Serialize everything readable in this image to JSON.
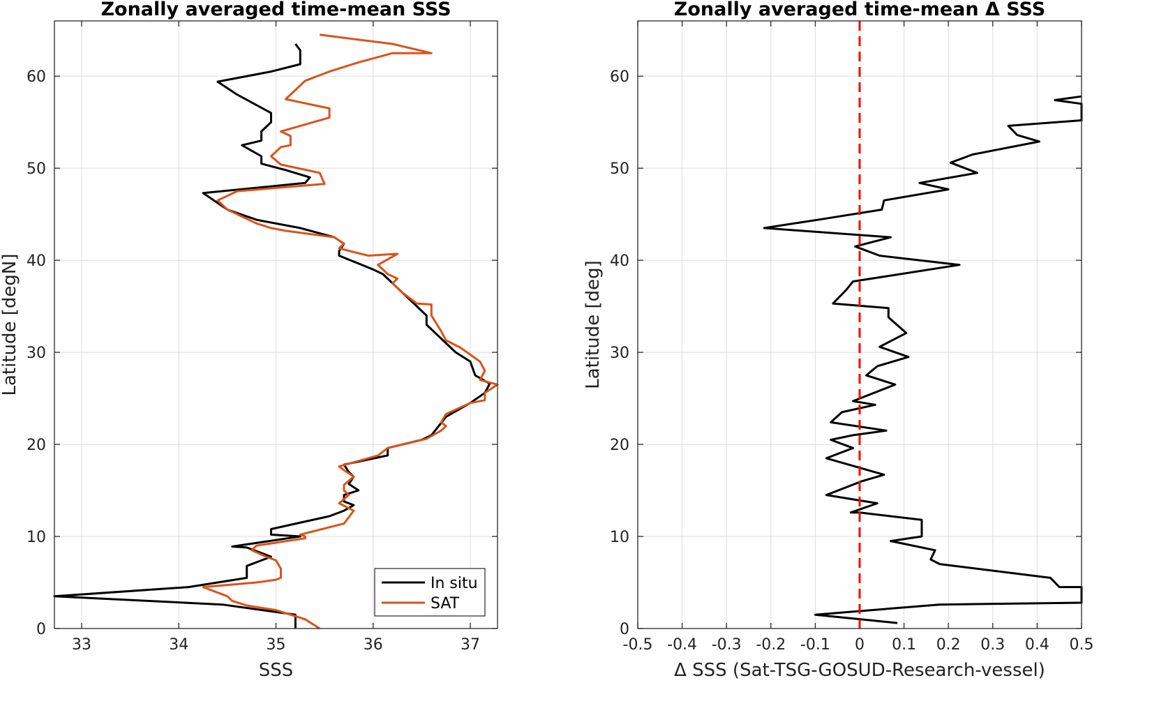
{
  "chart_data": [
    {
      "type": "line",
      "title": "Zonally averaged time-mean SSS",
      "xlabel": "SSS",
      "ylabel": "Latitude [degN]",
      "xlim": [
        32.72,
        37.28
      ],
      "ylim": [
        0,
        66
      ],
      "xticks": [
        33,
        34,
        35,
        36,
        37
      ],
      "yticks": [
        0,
        10,
        20,
        30,
        40,
        50,
        60
      ],
      "grid": true,
      "legend_position": "bottom-right",
      "series": [
        {
          "name": "In situ",
          "color": "#000000",
          "points": [
            [
              35.2,
              0
            ],
            [
              35.2,
              1.5
            ],
            [
              34.45,
              2.6
            ],
            [
              32.72,
              3.5
            ],
            [
              34.1,
              4.5
            ],
            [
              34.7,
              5.5
            ],
            [
              34.7,
              6.8
            ],
            [
              34.95,
              7.8
            ],
            [
              34.8,
              8.4
            ],
            [
              34.7,
              8.8
            ],
            [
              34.55,
              8.9
            ],
            [
              35.25,
              10
            ],
            [
              34.95,
              10.2
            ],
            [
              34.95,
              10.8
            ],
            [
              35.55,
              12.2
            ],
            [
              35.7,
              12.8
            ],
            [
              35.8,
              13.4
            ],
            [
              35.7,
              13.8
            ],
            [
              35.7,
              14.5
            ],
            [
              35.85,
              15
            ],
            [
              35.75,
              15.7
            ],
            [
              35.8,
              16.5
            ],
            [
              35.75,
              17
            ],
            [
              35.7,
              17.8
            ],
            [
              36.15,
              18.8
            ],
            [
              36.15,
              19.6
            ],
            [
              36.5,
              20.5
            ],
            [
              36.6,
              21
            ],
            [
              36.75,
              23
            ],
            [
              37.0,
              24.5
            ],
            [
              37.15,
              25.6
            ],
            [
              37.2,
              26.6
            ],
            [
              37.05,
              27.5
            ],
            [
              37.0,
              29
            ],
            [
              36.85,
              30
            ],
            [
              36.75,
              31
            ],
            [
              36.7,
              31.5
            ],
            [
              36.55,
              33
            ],
            [
              36.55,
              34
            ],
            [
              36.45,
              35
            ],
            [
              36.3,
              36.5
            ],
            [
              36.2,
              37.5
            ],
            [
              36.1,
              38.5
            ],
            [
              36.0,
              39
            ],
            [
              35.65,
              40.5
            ],
            [
              35.65,
              41
            ],
            [
              35.7,
              41.8
            ],
            [
              35.6,
              42.5
            ],
            [
              35.25,
              43.5
            ],
            [
              34.8,
              44.4
            ],
            [
              34.5,
              45.5
            ],
            [
              34.25,
              47.3
            ],
            [
              35.3,
              48.4
            ],
            [
              35.35,
              49
            ],
            [
              35.1,
              49.8
            ],
            [
              34.85,
              50.5
            ],
            [
              34.85,
              51.3
            ],
            [
              34.65,
              52.5
            ],
            [
              34.85,
              53
            ],
            [
              34.85,
              54
            ],
            [
              34.95,
              55
            ],
            [
              34.95,
              56
            ],
            [
              34.6,
              58
            ],
            [
              34.4,
              59.4
            ],
            [
              34.95,
              60.5
            ],
            [
              35.25,
              61.3
            ],
            [
              35.25,
              62.8
            ],
            [
              35.2,
              63.5
            ]
          ]
        },
        {
          "name": "SAT",
          "color": "#d95319",
          "points": [
            [
              35.45,
              0
            ],
            [
              35.3,
              1
            ],
            [
              35.0,
              2
            ],
            [
              34.7,
              2.5
            ],
            [
              34.55,
              3
            ],
            [
              34.5,
              3.5
            ],
            [
              34.25,
              4.5
            ],
            [
              34.8,
              5
            ],
            [
              35.0,
              5.3
            ],
            [
              35.05,
              5.5
            ],
            [
              35.05,
              6.5
            ],
            [
              35.0,
              7.4
            ],
            [
              34.9,
              7.8
            ],
            [
              34.75,
              8.5
            ],
            [
              34.8,
              9
            ],
            [
              35.3,
              9.8
            ],
            [
              35.3,
              10
            ],
            [
              35.25,
              10.2
            ],
            [
              35.7,
              11.4
            ],
            [
              35.8,
              12.8
            ],
            [
              35.65,
              13.6
            ],
            [
              35.75,
              14.5
            ],
            [
              35.7,
              15
            ],
            [
              35.7,
              15.6
            ],
            [
              35.8,
              16.5
            ],
            [
              35.7,
              17.2
            ],
            [
              35.65,
              17.6
            ],
            [
              36.05,
              18.8
            ],
            [
              36.15,
              19.6
            ],
            [
              36.55,
              20.6
            ],
            [
              36.7,
              21.5
            ],
            [
              36.75,
              22
            ],
            [
              36.7,
              22.4
            ],
            [
              36.75,
              23.3
            ],
            [
              37.0,
              24.5
            ],
            [
              37.15,
              24.8
            ],
            [
              37.15,
              25.6
            ],
            [
              37.28,
              26.5
            ],
            [
              37.1,
              27
            ],
            [
              37.15,
              28
            ],
            [
              37.1,
              29
            ],
            [
              36.9,
              30.5
            ],
            [
              36.75,
              31.3
            ],
            [
              36.7,
              32.3
            ],
            [
              36.6,
              34
            ],
            [
              36.6,
              35.2
            ],
            [
              36.45,
              35.3
            ],
            [
              36.3,
              36.5
            ],
            [
              36.2,
              37.5
            ],
            [
              36.25,
              38
            ],
            [
              36.15,
              38.5
            ],
            [
              36.05,
              39.5
            ],
            [
              36.25,
              40.7
            ],
            [
              35.95,
              40.5
            ],
            [
              35.65,
              41.3
            ],
            [
              35.7,
              41.8
            ],
            [
              35.6,
              42.5
            ],
            [
              35.1,
              43.2
            ],
            [
              34.95,
              43.5
            ],
            [
              34.8,
              44
            ],
            [
              34.5,
              45.5
            ],
            [
              34.4,
              46.5
            ],
            [
              34.6,
              47.5
            ],
            [
              35.5,
              48.3
            ],
            [
              35.45,
              49.5
            ],
            [
              35.05,
              50.4
            ],
            [
              34.95,
              51.3
            ],
            [
              35.05,
              52.3
            ],
            [
              35.15,
              52.5
            ],
            [
              35.15,
              53.5
            ],
            [
              35.05,
              54
            ],
            [
              35.55,
              55.5
            ],
            [
              35.55,
              56.5
            ],
            [
              35.1,
              57.5
            ],
            [
              35.2,
              58.5
            ],
            [
              35.3,
              59.5
            ],
            [
              35.55,
              60.5
            ],
            [
              35.85,
              61.5
            ],
            [
              36.2,
              62.5
            ],
            [
              36.6,
              62.5
            ],
            [
              36.2,
              63.5
            ],
            [
              35.45,
              64.5
            ]
          ]
        }
      ]
    },
    {
      "type": "line",
      "title": "Zonally averaged time-mean Δ SSS",
      "xlabel": "Δ SSS (Sat-TSG-GOSUD-Research-vessel)",
      "ylabel": "Latitude [deg]",
      "xlim": [
        -0.5,
        0.5
      ],
      "ylim": [
        0,
        66
      ],
      "xticks": [
        -0.5,
        -0.4,
        -0.3,
        -0.2,
        -0.1,
        0,
        0.1,
        0.2,
        0.3,
        0.4,
        0.5
      ],
      "xtick_labels": [
        "-0.5",
        "-0.4",
        "-0.3",
        "-0.2",
        "-0.1",
        "0",
        "0.1",
        "0.2",
        "0.3",
        "0.4",
        "0.5"
      ],
      "yticks": [
        0,
        10,
        20,
        30,
        40,
        50,
        60
      ],
      "grid": true,
      "reference_line": {
        "x": 0,
        "color": "#ff0000",
        "style": "dashed"
      },
      "series": [
        {
          "name": "",
          "color": "#000000",
          "points": [
            [
              0.085,
              0.6
            ],
            [
              -0.1,
              1.5
            ],
            [
              0.18,
              2.6
            ],
            [
              0.5,
              2.8
            ],
            [
              0.5,
              4.5
            ],
            [
              0.45,
              4.5
            ],
            [
              0.43,
              5.5
            ],
            [
              0.18,
              7
            ],
            [
              0.16,
              7.5
            ],
            [
              0.17,
              8.5
            ],
            [
              0.07,
              9.5
            ],
            [
              0.14,
              10
            ],
            [
              0.14,
              11.8
            ],
            [
              0.0,
              12.6
            ],
            [
              -0.02,
              12.6
            ],
            [
              0.04,
              13.6
            ],
            [
              -0.075,
              14.5
            ],
            [
              0.005,
              16
            ],
            [
              0.055,
              16.7
            ],
            [
              -0.075,
              18.5
            ],
            [
              -0.015,
              19.6
            ],
            [
              -0.065,
              20.5
            ],
            [
              -0.015,
              21
            ],
            [
              0.06,
              21.5
            ],
            [
              -0.065,
              22.4
            ],
            [
              -0.04,
              23.5
            ],
            [
              0.035,
              24.3
            ],
            [
              -0.015,
              24.7
            ],
            [
              0.08,
              26.5
            ],
            [
              0.015,
              27.5
            ],
            [
              0.04,
              28.5
            ],
            [
              0.11,
              29.5
            ],
            [
              0.045,
              30.6
            ],
            [
              0.105,
              32.1
            ],
            [
              0.065,
              33.8
            ],
            [
              0.065,
              34.8
            ],
            [
              -0.06,
              35.3
            ],
            [
              -0.03,
              36.8
            ],
            [
              -0.015,
              37.7
            ],
            [
              0.225,
              39.5
            ],
            [
              0.045,
              40.5
            ],
            [
              -0.01,
              41.5
            ],
            [
              0.07,
              42.5
            ],
            [
              -0.215,
              43.5
            ],
            [
              -0.08,
              44.5
            ],
            [
              0.05,
              45.5
            ],
            [
              0.055,
              46.5
            ],
            [
              0.2,
              47.7
            ],
            [
              0.135,
              48.4
            ],
            [
              0.265,
              49.5
            ],
            [
              0.205,
              50.6
            ],
            [
              0.255,
              51.5
            ],
            [
              0.405,
              52.9
            ],
            [
              0.355,
              53.6
            ],
            [
              0.335,
              54.6
            ],
            [
              0.5,
              55.2
            ],
            [
              0.5,
              57.0
            ],
            [
              0.44,
              57.4
            ],
            [
              0.5,
              57.8
            ]
          ]
        }
      ]
    }
  ]
}
